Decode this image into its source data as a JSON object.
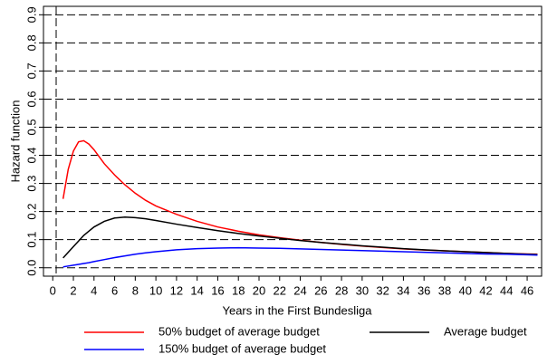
{
  "chart_data": {
    "type": "line",
    "x_label": "Years in the First Bundesliga",
    "y_label": "Hazard function",
    "x": [
      1,
      1.5,
      2,
      2.5,
      3,
      3.5,
      4,
      5,
      6,
      7,
      8,
      9,
      10,
      12,
      14,
      16,
      18,
      20,
      22,
      24,
      26,
      28,
      30,
      32,
      34,
      36,
      38,
      40,
      42,
      44,
      46,
      47
    ],
    "series": [
      {
        "name": "50% budget of average budget",
        "color": "#ff0000",
        "values": [
          0.245,
          0.35,
          0.415,
          0.448,
          0.452,
          0.44,
          0.42,
          0.37,
          0.33,
          0.295,
          0.265,
          0.24,
          0.22,
          0.19,
          0.165,
          0.145,
          0.13,
          0.117,
          0.107,
          0.098,
          0.09,
          0.083,
          0.077,
          0.072,
          0.067,
          0.063,
          0.06,
          0.057,
          0.054,
          0.051,
          0.049,
          0.048
        ]
      },
      {
        "name": "Average budget",
        "color": "#000000",
        "values": [
          0.035,
          0.055,
          0.075,
          0.095,
          0.115,
          0.13,
          0.145,
          0.165,
          0.177,
          0.18,
          0.178,
          0.174,
          0.168,
          0.155,
          0.143,
          0.132,
          0.122,
          0.113,
          0.105,
          0.097,
          0.09,
          0.084,
          0.078,
          0.073,
          0.068,
          0.064,
          0.06,
          0.057,
          0.054,
          0.051,
          0.048,
          0.047
        ]
      },
      {
        "name": "150% budget of average budget",
        "color": "#0000ff",
        "values": [
          0.003,
          0.006,
          0.009,
          0.012,
          0.015,
          0.018,
          0.022,
          0.029,
          0.036,
          0.042,
          0.048,
          0.053,
          0.057,
          0.064,
          0.068,
          0.07,
          0.071,
          0.07,
          0.069,
          0.067,
          0.065,
          0.063,
          0.061,
          0.059,
          0.057,
          0.055,
          0.053,
          0.051,
          0.049,
          0.048,
          0.046,
          0.045
        ]
      }
    ],
    "xlim": [
      -0.9,
      47.4
    ],
    "xticks": [
      0,
      2,
      4,
      6,
      8,
      10,
      12,
      14,
      16,
      18,
      20,
      22,
      24,
      26,
      28,
      30,
      32,
      34,
      36,
      38,
      40,
      42,
      44,
      46
    ],
    "ylim": [
      -0.03,
      0.93
    ],
    "yticks": [
      {
        "value": 0,
        "label": "0.0"
      },
      0.1,
      0.2,
      0.3,
      0.4,
      0.5,
      0.6,
      0.7,
      0.8,
      0.9
    ],
    "grid": true
  }
}
